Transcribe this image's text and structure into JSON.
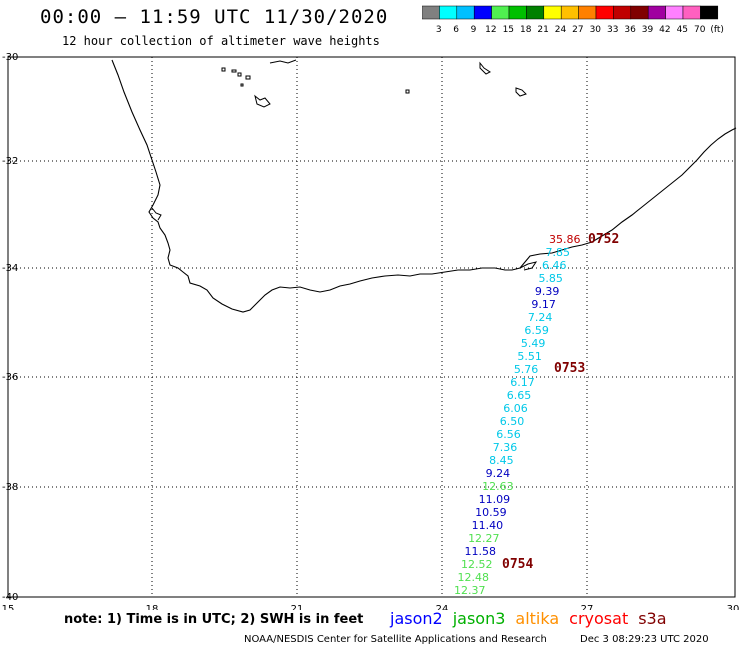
{
  "header": {
    "title": "00:00 – 11:59 UTC 11/30/2020",
    "subtitle": "12 hour collection of altimeter wave heights"
  },
  "color_scale": {
    "colors": [
      "#808080",
      "#00ffff",
      "#00c0ff",
      "#0000ff",
      "#50f050",
      "#00c000",
      "#008000",
      "#ffff00",
      "#ffc000",
      "#ff8000",
      "#ff0000",
      "#c00000",
      "#800000",
      "#a000a0",
      "#ff80ff",
      "#ff60c0",
      "#000000"
    ],
    "labels": [
      "3",
      "6",
      "9",
      "12",
      "15",
      "18",
      "21",
      "24",
      "27",
      "30",
      "33",
      "36",
      "39",
      "42",
      "45",
      "70",
      "(ft)"
    ]
  },
  "axes": {
    "lon_ticks": [
      "15",
      "18",
      "21",
      "24",
      "27",
      "30"
    ],
    "lat_ticks": [
      "-30",
      "-32",
      "-34",
      "-36",
      "-38",
      "-40"
    ]
  },
  "track": {
    "wave_heights": [
      {
        "v": "35.86",
        "c": "#c00000"
      },
      {
        "v": "7.85",
        "c": "#00c8e8"
      },
      {
        "v": "6.46",
        "c": "#00c8e8"
      },
      {
        "v": "5.85",
        "c": "#00c8e8"
      },
      {
        "v": "9.39",
        "c": "#0000c0"
      },
      {
        "v": "9.17",
        "c": "#0000c0"
      },
      {
        "v": "7.24",
        "c": "#00c8e8"
      },
      {
        "v": "6.59",
        "c": "#00c8e8"
      },
      {
        "v": "5.49",
        "c": "#00c8e8"
      },
      {
        "v": "5.51",
        "c": "#00c8e8"
      },
      {
        "v": "5.76",
        "c": "#00c8e8"
      },
      {
        "v": "6.17",
        "c": "#00c8e8"
      },
      {
        "v": "6.65",
        "c": "#00c8e8"
      },
      {
        "v": "6.06",
        "c": "#00c8e8"
      },
      {
        "v": "6.50",
        "c": "#00c8e8"
      },
      {
        "v": "6.56",
        "c": "#00c8e8"
      },
      {
        "v": "7.36",
        "c": "#00c8e8"
      },
      {
        "v": "8.45",
        "c": "#00c8e8"
      },
      {
        "v": "9.24",
        "c": "#0000c0"
      },
      {
        "v": "12.63",
        "c": "#50e050"
      },
      {
        "v": "11.09",
        "c": "#0000c0"
      },
      {
        "v": "10.59",
        "c": "#0000c0"
      },
      {
        "v": "11.40",
        "c": "#0000c0"
      },
      {
        "v": "12.27",
        "c": "#50e050"
      },
      {
        "v": "11.58",
        "c": "#0000c0"
      },
      {
        "v": "12.52",
        "c": "#50e050"
      },
      {
        "v": "12.48",
        "c": "#50e050"
      },
      {
        "v": "12.37",
        "c": "#50e050"
      }
    ],
    "times": [
      "0752",
      "0753",
      "0754"
    ]
  },
  "footer": {
    "note": "note: 1) Time is in UTC; 2) SWH is in feet",
    "satellites": [
      {
        "name": "jason2",
        "color": "#0000ff"
      },
      {
        "name": "jason3",
        "color": "#00b000"
      },
      {
        "name": "altika",
        "color": "#ff9000"
      },
      {
        "name": "cryosat",
        "color": "#ff0000"
      },
      {
        "name": "s3a",
        "color": "#800000"
      }
    ],
    "credit": "NOAA/NESDIS Center for Satellite Applications and Research",
    "date": "Dec  3 08:29:23 UTC 2020"
  }
}
